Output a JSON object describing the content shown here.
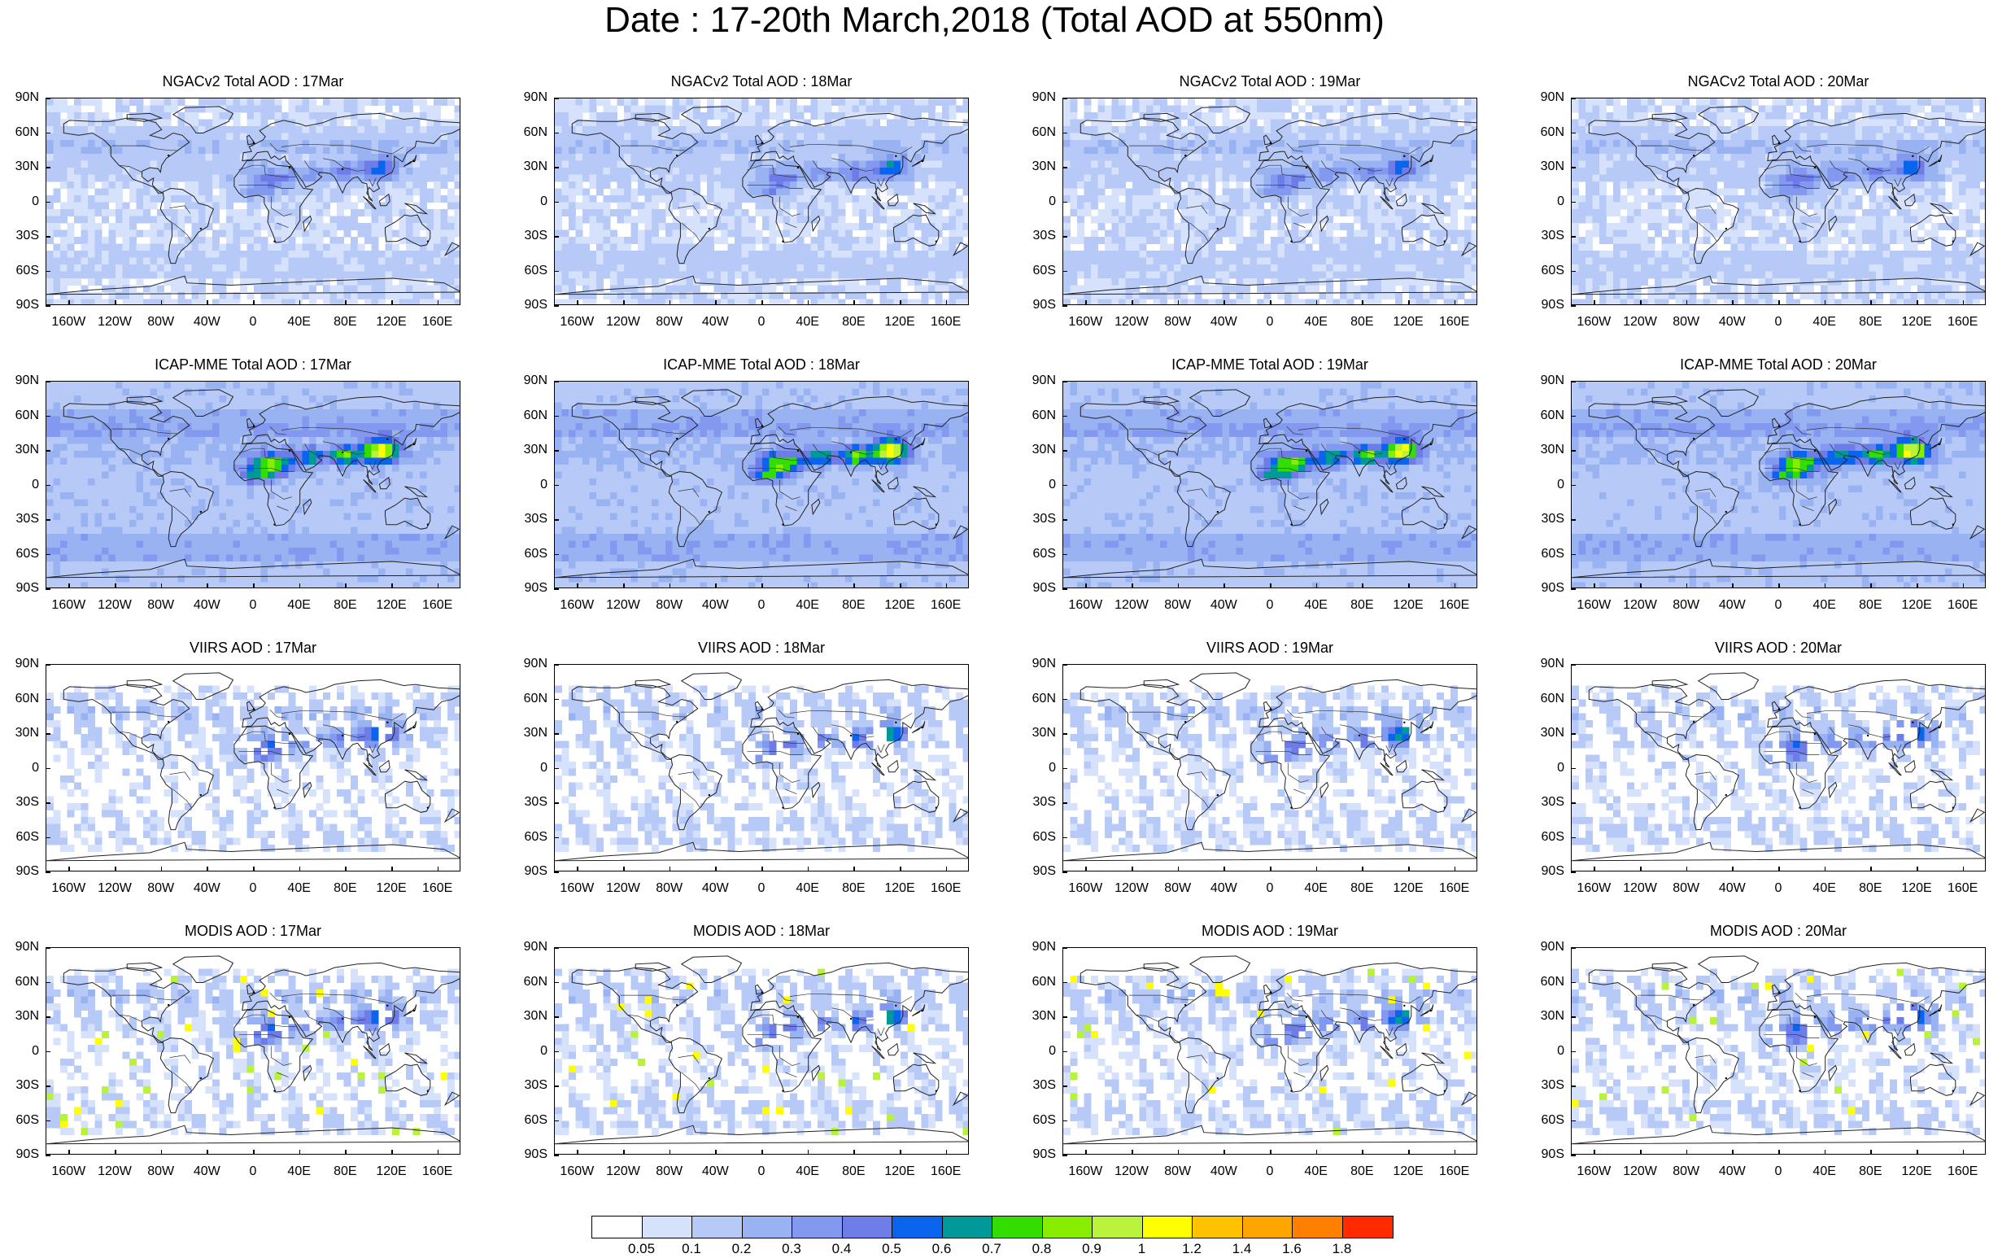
{
  "title": "Date : 17-20th March,2018 (Total AOD at 550nm)",
  "panels": [
    {
      "title": "NGACv2 Total AOD : 17Mar",
      "model": "ngac",
      "day": 17
    },
    {
      "title": "NGACv2 Total AOD : 18Mar",
      "model": "ngac",
      "day": 18
    },
    {
      "title": "NGACv2 Total AOD : 19Mar",
      "model": "ngac",
      "day": 19
    },
    {
      "title": "NGACv2 Total AOD : 20Mar",
      "model": "ngac",
      "day": 20
    },
    {
      "title": "ICAP-MME Total AOD : 17Mar",
      "model": "icap",
      "day": 17
    },
    {
      "title": "ICAP-MME Total AOD : 18Mar",
      "model": "icap",
      "day": 18
    },
    {
      "title": "ICAP-MME Total AOD : 19Mar",
      "model": "icap",
      "day": 19
    },
    {
      "title": "ICAP-MME Total AOD : 20Mar",
      "model": "icap",
      "day": 20
    },
    {
      "title": "VIIRS AOD : 17Mar",
      "model": "viirs",
      "day": 17
    },
    {
      "title": "VIIRS AOD : 18Mar",
      "model": "viirs",
      "day": 18
    },
    {
      "title": "VIIRS AOD : 19Mar",
      "model": "viirs",
      "day": 19
    },
    {
      "title": "VIIRS AOD : 20Mar",
      "model": "viirs",
      "day": 20
    },
    {
      "title": "MODIS AOD : 17Mar",
      "model": "modis",
      "day": 17
    },
    {
      "title": "MODIS AOD : 18Mar",
      "model": "modis",
      "day": 18
    },
    {
      "title": "MODIS AOD : 19Mar",
      "model": "modis",
      "day": 19
    },
    {
      "title": "MODIS AOD : 20Mar",
      "model": "modis",
      "day": 20
    }
  ],
  "lat_labels": [
    "90N",
    "60N",
    "30N",
    "0",
    "30S",
    "60S",
    "90S"
  ],
  "lon_labels": [
    "160W",
    "120W",
    "80W",
    "40W",
    "0",
    "40E",
    "80E",
    "120E",
    "160E"
  ],
  "colorbar": {
    "labels": [
      "0.05",
      "0.1",
      "0.2",
      "0.3",
      "0.4",
      "0.5",
      "0.6",
      "0.7",
      "0.8",
      "0.9",
      "1",
      "1.2",
      "1.4",
      "1.6",
      "1.8"
    ],
    "colors": [
      "#ffffff",
      "#d6e1fb",
      "#b7c9f6",
      "#98b2f2",
      "#8299ef",
      "#6e7ce8",
      "#0a64ee",
      "#009999",
      "#33dd00",
      "#88ee00",
      "#b9f23b",
      "#ffff00",
      "#ffc200",
      "#ffa500",
      "#ff7f00",
      "#ff2a00"
    ]
  }
}
